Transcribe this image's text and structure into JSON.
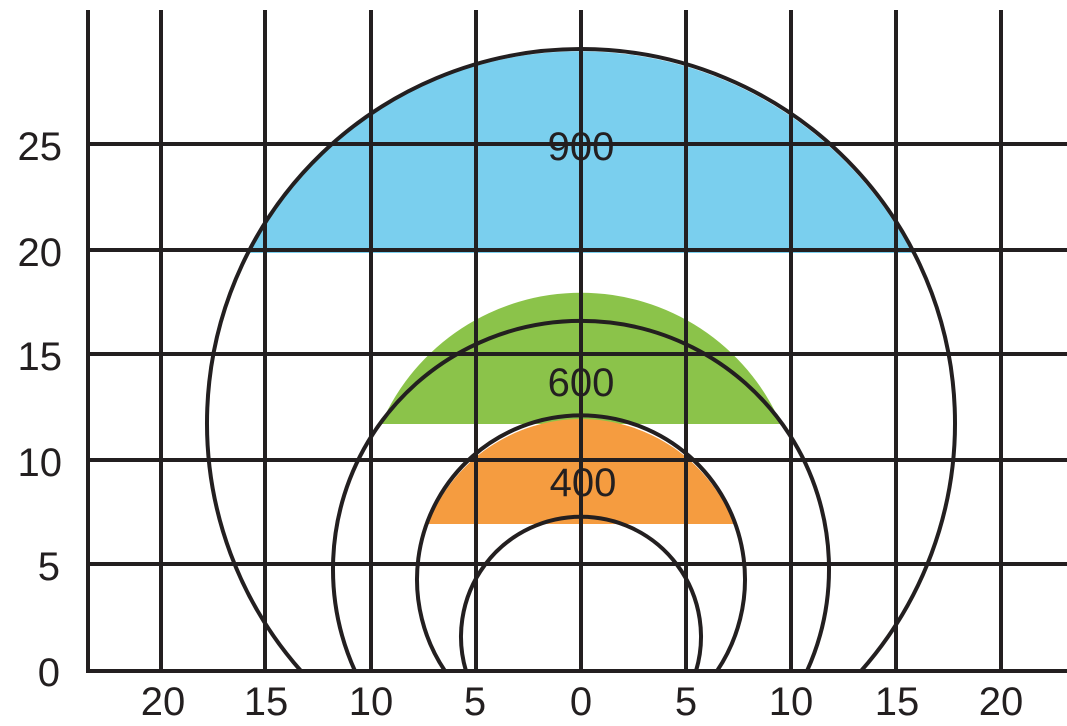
{
  "x_tick_labels": [
    "20",
    "15",
    "10",
    "5",
    "0",
    "5",
    "10",
    "15",
    "20"
  ],
  "y_tick_labels": [
    "0",
    "5",
    "10",
    "15",
    "20",
    "25"
  ],
  "zones": [
    {
      "label": "900",
      "color": "#7acfee"
    },
    {
      "label": "600",
      "color": "#8bc34a"
    },
    {
      "label": "400",
      "color": "#f59c40"
    }
  ],
  "stroke_color": "#231f20"
}
